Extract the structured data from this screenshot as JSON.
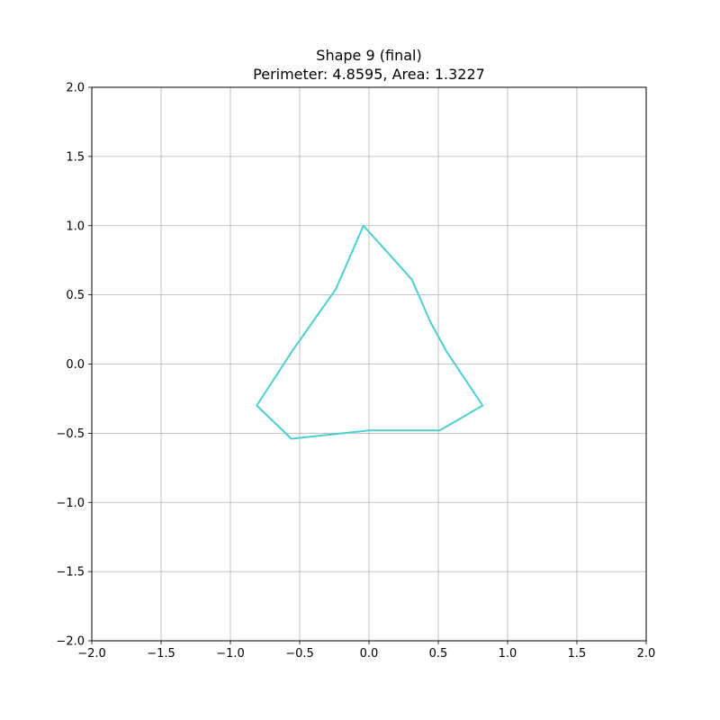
{
  "chart_data": {
    "type": "line",
    "title_lines": [
      "Shape 9 (final)",
      "Perimeter: 4.8595, Area: 1.3227"
    ],
    "xlim": [
      -2.0,
      2.0
    ],
    "ylim": [
      -2.0,
      2.0
    ],
    "grid": true,
    "x_ticks": [
      -2.0,
      -1.5,
      -1.0,
      -0.5,
      0.0,
      0.5,
      1.0,
      1.5,
      2.0
    ],
    "y_ticks": [
      -2.0,
      -1.5,
      -1.0,
      -0.5,
      0.0,
      0.5,
      1.0,
      1.5,
      2.0
    ],
    "x_tick_labels": [
      "−2.0",
      "−1.5",
      "−1.0",
      "−0.5",
      "0.0",
      "0.5",
      "1.0",
      "1.5",
      "2.0"
    ],
    "y_tick_labels": [
      "−2.0",
      "−1.5",
      "−1.0",
      "−0.5",
      "0.0",
      "0.5",
      "1.0",
      "1.5",
      "2.0"
    ],
    "series": [
      {
        "color": "#4ecfcf",
        "closed": true,
        "points": [
          [
            -0.04,
            1.0
          ],
          [
            0.31,
            0.61
          ],
          [
            0.44,
            0.31
          ],
          [
            0.56,
            0.09
          ],
          [
            0.82,
            -0.3
          ],
          [
            0.51,
            -0.48
          ],
          [
            0.0,
            -0.48
          ],
          [
            -0.56,
            -0.54
          ],
          [
            -0.81,
            -0.3
          ],
          [
            -0.55,
            0.1
          ],
          [
            -0.24,
            0.54
          ]
        ]
      }
    ]
  }
}
